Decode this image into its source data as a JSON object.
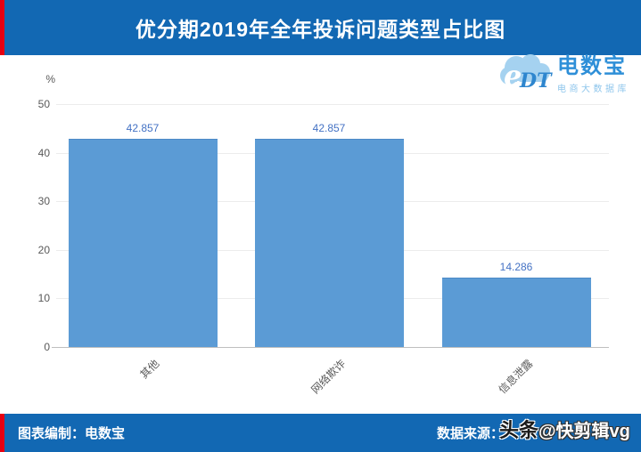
{
  "header": {
    "title": "优分期2019年全年投诉问题类型占比图"
  },
  "logo": {
    "cloud_text": "eDT",
    "name": "电数宝",
    "subtitle": "电商大数据库"
  },
  "chart_data": {
    "type": "bar",
    "title": "优分期2019年全年投诉问题类型占比图",
    "categories": [
      "其他",
      "网络欺诈",
      "信息泄露"
    ],
    "values": [
      42.857,
      42.857,
      14.286
    ],
    "value_labels": [
      "42.857",
      "42.857",
      "14.286"
    ],
    "unit_label": "%",
    "xlabel": "",
    "ylabel": "%",
    "ylim": [
      0,
      50
    ],
    "yticks": [
      0,
      10,
      20,
      30,
      40,
      50
    ],
    "grid": true,
    "legend": false,
    "bar_color": "#5B9BD5",
    "value_label_color": "#4472C4",
    "tick_label_color": "#595959"
  },
  "footer": {
    "left": "图表编制：电数宝",
    "right": "数据来源："
  },
  "watermark": {
    "prefix": "头条",
    "suffix": "@快剪辑vg"
  },
  "colors": {
    "banner_blue": "#1268B3",
    "accent_red": "#E60012",
    "bar_blue": "#5B9BD5"
  }
}
